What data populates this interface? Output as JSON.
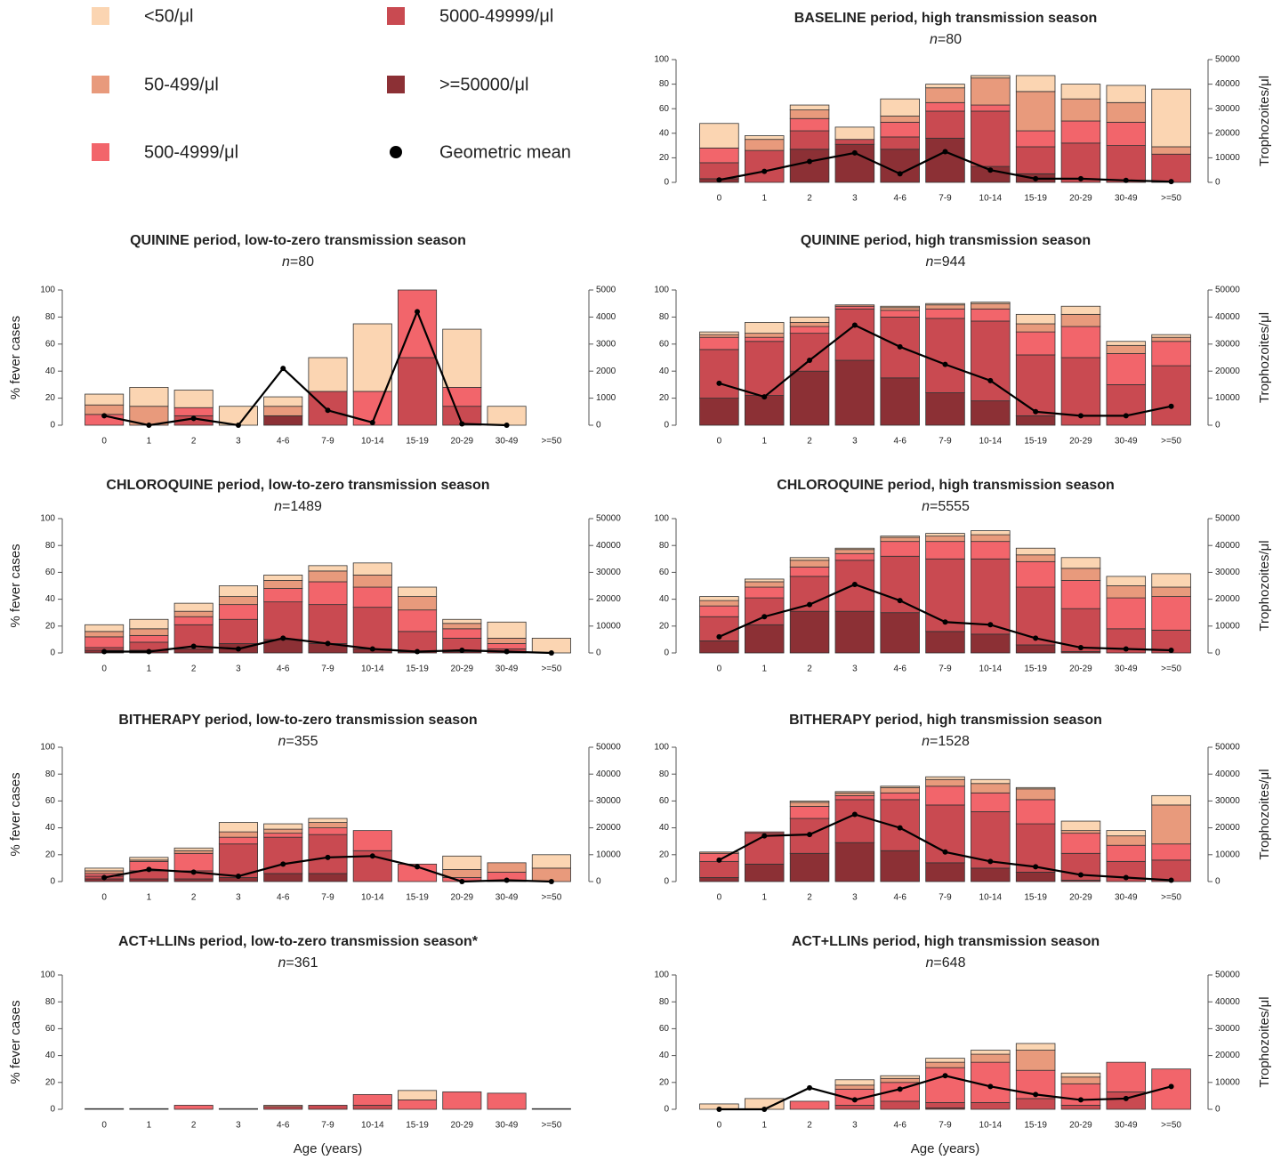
{
  "legend": {
    "items": [
      {
        "name": "<50/μl",
        "color": "#fbd5b2"
      },
      {
        "name": "50-499/μl",
        "color": "#e89a7c"
      },
      {
        "name": "500-4999/μl",
        "color": "#f2656b"
      },
      {
        "name": "5000-49999/μl",
        "color": "#c94a51"
      },
      {
        "name": ">=50000/μl",
        "color": "#8c3035"
      },
      {
        "name": "Geometric mean",
        "color": "#000000"
      }
    ]
  },
  "chart_data": [
    {
      "type": "bar",
      "title": "BASELINE period, high transmission season",
      "subtitle": "n=80",
      "categories": [
        "0",
        "1",
        "2",
        "3",
        "4-6",
        "7-9",
        "10-14",
        "15-19",
        "20-29",
        "30-49",
        ">=50"
      ],
      "series": [
        {
          "values": [
            20,
            3,
            4,
            10,
            14,
            3,
            2,
            13,
            12,
            14,
            47
          ]
        },
        {
          "values": [
            0,
            9,
            7,
            0,
            5,
            12,
            22,
            32,
            18,
            16,
            6
          ]
        },
        {
          "values": [
            12,
            0,
            10,
            0,
            12,
            7,
            5,
            13,
            18,
            19,
            0
          ]
        },
        {
          "values": [
            13,
            26,
            15,
            4,
            10,
            22,
            45,
            22,
            32,
            30,
            23
          ]
        },
        {
          "values": [
            3,
            0,
            27,
            31,
            27,
            36,
            13,
            7,
            0,
            0,
            0
          ]
        }
      ],
      "mean": {
        "axis": "y2",
        "values": [
          1000,
          4500,
          8500,
          12000,
          3500,
          12500,
          5000,
          1500,
          1500,
          800,
          300
        ]
      },
      "ylim": [
        0,
        100
      ],
      "yticks": [
        0,
        20,
        40,
        60,
        80,
        100
      ],
      "y2lim": [
        0,
        50000
      ],
      "y2ticks": [
        0,
        10000,
        20000,
        30000,
        40000,
        50000
      ],
      "y2label": "Trophozoites/μl"
    },
    {
      "type": "bar",
      "title": "QUININE period, low-to-zero transmission season",
      "subtitle": "n=80",
      "categories": [
        "0",
        "1",
        "2",
        "3",
        "4-6",
        "7-9",
        "10-14",
        "15-19",
        "20-29",
        "30-49",
        ">=50"
      ],
      "series": [
        {
          "values": [
            8,
            14,
            13,
            14,
            7,
            25,
            50,
            0,
            43,
            14,
            0
          ]
        },
        {
          "values": [
            7,
            14,
            0,
            0,
            7,
            0,
            0,
            0,
            0,
            0,
            0
          ]
        },
        {
          "values": [
            8,
            0,
            6,
            0,
            0,
            0,
            25,
            50,
            14,
            0,
            0
          ]
        },
        {
          "values": [
            0,
            0,
            7,
            0,
            0,
            25,
            0,
            50,
            14,
            0,
            0
          ]
        },
        {
          "values": [
            0,
            0,
            0,
            0,
            7,
            0,
            0,
            0,
            0,
            0,
            0
          ]
        }
      ],
      "mean": {
        "axis": "y2",
        "values": [
          350,
          0,
          250,
          0,
          2100,
          550,
          100,
          4200,
          50,
          0,
          null
        ]
      },
      "ylim": [
        0,
        100
      ],
      "yticks": [
        0,
        20,
        40,
        60,
        80,
        100
      ],
      "y2lim": [
        0,
        5000
      ],
      "y2ticks": [
        0,
        1000,
        2000,
        3000,
        4000,
        5000
      ],
      "ylabel": "% fever cases"
    },
    {
      "type": "bar",
      "title": "QUININE period, high transmission season",
      "subtitle": "n=944",
      "categories": [
        "0",
        "1",
        "2",
        "3",
        "4-6",
        "7-9",
        "10-14",
        "15-19",
        "20-29",
        "30-49",
        ">=50"
      ],
      "series": [
        {
          "values": [
            2,
            8,
            4,
            0,
            1,
            1,
            1,
            7,
            6,
            3,
            2
          ]
        },
        {
          "values": [
            2,
            3,
            3,
            1,
            2,
            3,
            4,
            6,
            9,
            6,
            3
          ]
        },
        {
          "values": [
            9,
            3,
            5,
            2,
            5,
            7,
            9,
            17,
            23,
            23,
            18
          ]
        },
        {
          "values": [
            36,
            40,
            28,
            38,
            45,
            55,
            59,
            45,
            50,
            30,
            44
          ]
        },
        {
          "values": [
            20,
            22,
            40,
            48,
            35,
            24,
            18,
            7,
            0,
            0,
            0
          ]
        }
      ],
      "mean": {
        "axis": "y2",
        "values": [
          15500,
          10500,
          24000,
          37000,
          29000,
          22500,
          16500,
          5000,
          3500,
          3500,
          7000
        ]
      },
      "ylim": [
        0,
        100
      ],
      "yticks": [
        0,
        20,
        40,
        60,
        80,
        100
      ],
      "y2lim": [
        0,
        50000
      ],
      "y2ticks": [
        0,
        10000,
        20000,
        30000,
        40000,
        50000
      ],
      "y2label": "Trophozoites/μl"
    },
    {
      "type": "bar",
      "title": "CHLOROQUINE period, low-to-zero transmission season",
      "subtitle": "n=1489",
      "categories": [
        "0",
        "1",
        "2",
        "3",
        "4-6",
        "7-9",
        "10-14",
        "15-19",
        "20-29",
        "30-49",
        ">=50"
      ],
      "series": [
        {
          "values": [
            5,
            7,
            6,
            8,
            4,
            4,
            9,
            7,
            3,
            12,
            11
          ]
        },
        {
          "values": [
            4,
            5,
            4,
            6,
            6,
            8,
            9,
            10,
            4,
            4,
            0
          ]
        },
        {
          "values": [
            8,
            5,
            6,
            11,
            10,
            17,
            15,
            16,
            7,
            4,
            0
          ]
        },
        {
          "values": [
            2,
            6,
            18,
            18,
            28,
            29,
            31,
            15,
            10,
            3,
            0
          ]
        },
        {
          "values": [
            2,
            2,
            3,
            7,
            10,
            7,
            3,
            1,
            1,
            0,
            0
          ]
        }
      ],
      "mean": {
        "axis": "y2",
        "values": [
          500,
          500,
          2500,
          1500,
          5500,
          3500,
          1500,
          500,
          1000,
          500,
          0
        ]
      },
      "ylim": [
        0,
        100
      ],
      "yticks": [
        0,
        20,
        40,
        60,
        80,
        100
      ],
      "y2lim": [
        0,
        50000
      ],
      "y2ticks": [
        0,
        10000,
        20000,
        30000,
        40000,
        50000
      ],
      "ylabel": "% fever cases"
    },
    {
      "type": "bar",
      "title": "CHLOROQUINE period, high transmission season",
      "subtitle": "n=5555",
      "categories": [
        "0",
        "1",
        "2",
        "3",
        "4-6",
        "7-9",
        "10-14",
        "15-19",
        "20-29",
        "30-49",
        ">=50"
      ],
      "series": [
        {
          "values": [
            3,
            2,
            2,
            1,
            1,
            2,
            3,
            5,
            8,
            7,
            10
          ]
        },
        {
          "values": [
            4,
            4,
            5,
            3,
            3,
            4,
            5,
            5,
            9,
            9,
            7
          ]
        },
        {
          "values": [
            8,
            8,
            7,
            5,
            11,
            13,
            13,
            19,
            21,
            23,
            25
          ]
        },
        {
          "values": [
            18,
            20,
            26,
            38,
            42,
            54,
            56,
            43,
            32,
            18,
            17
          ]
        },
        {
          "values": [
            9,
            21,
            31,
            31,
            30,
            16,
            14,
            6,
            1,
            0,
            0
          ]
        }
      ],
      "mean": {
        "axis": "y2",
        "values": [
          6000,
          13500,
          18000,
          25500,
          19500,
          11500,
          10500,
          5500,
          2000,
          1500,
          1000
        ]
      },
      "ylim": [
        0,
        100
      ],
      "yticks": [
        0,
        20,
        40,
        60,
        80,
        100
      ],
      "y2lim": [
        0,
        50000
      ],
      "y2ticks": [
        0,
        10000,
        20000,
        30000,
        40000,
        50000
      ],
      "y2label": "Trophozoites/μl"
    },
    {
      "type": "bar",
      "title": "BITHERAPY period, low-to-zero transmission season",
      "subtitle": "n=355",
      "categories": [
        "0",
        "1",
        "2",
        "3",
        "4-6",
        "7-9",
        "10-14",
        "15-19",
        "20-29",
        "30-49",
        ">=50"
      ],
      "series": [
        {
          "values": [
            2,
            2,
            2,
            7,
            4,
            3,
            0,
            0,
            10,
            0,
            10
          ]
        },
        {
          "values": [
            2,
            1,
            2,
            4,
            3,
            4,
            0,
            0,
            6,
            7,
            10
          ]
        },
        {
          "values": [
            2,
            7,
            13,
            5,
            3,
            5,
            15,
            13,
            3,
            7,
            0
          ]
        },
        {
          "values": [
            2,
            6,
            6,
            25,
            27,
            29,
            23,
            0,
            0,
            0,
            0
          ]
        },
        {
          "values": [
            2,
            2,
            2,
            3,
            6,
            6,
            0,
            0,
            0,
            0,
            0
          ]
        }
      ],
      "mean": {
        "axis": "y2",
        "values": [
          1500,
          4500,
          3500,
          2000,
          6500,
          9000,
          9500,
          5500,
          0,
          500,
          0
        ]
      },
      "ylim": [
        0,
        100
      ],
      "yticks": [
        0,
        20,
        40,
        60,
        80,
        100
      ],
      "y2lim": [
        0,
        50000
      ],
      "y2ticks": [
        0,
        10000,
        20000,
        30000,
        40000,
        50000
      ],
      "ylabel": "% fever cases"
    },
    {
      "type": "bar",
      "title": "BITHERAPY period, high transmission season",
      "subtitle": "n=1528",
      "categories": [
        "0",
        "1",
        "2",
        "3",
        "4-6",
        "7-9",
        "10-14",
        "15-19",
        "20-29",
        "30-49",
        ">=50"
      ],
      "series": [
        {
          "values": [
            0,
            0,
            1,
            1,
            1,
            2,
            3,
            1,
            7,
            4,
            7
          ]
        },
        {
          "values": [
            1,
            0,
            3,
            2,
            4,
            5,
            7,
            8,
            2,
            7,
            29
          ]
        },
        {
          "values": [
            6,
            1,
            9,
            3,
            5,
            14,
            14,
            18,
            15,
            12,
            12
          ]
        },
        {
          "values": [
            12,
            23,
            26,
            32,
            38,
            43,
            42,
            36,
            20,
            15,
            16
          ]
        },
        {
          "values": [
            3,
            13,
            21,
            29,
            23,
            14,
            10,
            7,
            1,
            0,
            0
          ]
        }
      ],
      "mean": {
        "axis": "y2",
        "values": [
          8000,
          17000,
          17500,
          25000,
          20000,
          11000,
          7500,
          5500,
          2500,
          1500,
          500
        ]
      },
      "ylim": [
        0,
        100
      ],
      "yticks": [
        0,
        20,
        40,
        60,
        80,
        100
      ],
      "y2lim": [
        0,
        50000
      ],
      "y2ticks": [
        0,
        10000,
        20000,
        30000,
        40000,
        50000
      ],
      "y2label": "Trophozoites/μl"
    },
    {
      "type": "bar",
      "title": "ACT+LLINs period, low-to-zero transmission season*",
      "subtitle": "n=361",
      "categories": [
        "0",
        "1",
        "2",
        "3",
        "4-6",
        "7-9",
        "10-14",
        "15-19",
        "20-29",
        "30-49",
        ">=50"
      ],
      "series": [
        {
          "values": [
            0,
            0,
            0,
            0,
            0,
            0,
            0,
            7,
            0,
            0,
            0
          ]
        },
        {
          "values": [
            0,
            0,
            0,
            0,
            1,
            0,
            0,
            0,
            0,
            0,
            0
          ]
        },
        {
          "values": [
            0.5,
            0.5,
            3,
            0.5,
            0,
            0,
            8,
            7,
            13,
            12,
            0.5
          ]
        },
        {
          "values": [
            0,
            0,
            0,
            0,
            2,
            3,
            3,
            0,
            0,
            0,
            0
          ]
        },
        {
          "values": [
            0,
            0,
            0,
            0,
            0,
            0,
            0,
            0,
            0,
            0,
            0
          ]
        }
      ],
      "ylim": [
        0,
        100
      ],
      "yticks": [
        0,
        20,
        40,
        60,
        80,
        100
      ],
      "ylabel": "% fever cases",
      "xlabel": "Age (years)"
    },
    {
      "type": "bar",
      "title": "ACT+LLINs period, high transmission season",
      "subtitle": "n=648",
      "categories": [
        "0",
        "1",
        "2",
        "3",
        "4-6",
        "7-9",
        "10-14",
        "15-19",
        "20-29",
        "30-49",
        ">=50"
      ],
      "series": [
        {
          "values": [
            4,
            8,
            0,
            4,
            2,
            3,
            3,
            5,
            3,
            0,
            0
          ]
        },
        {
          "values": [
            0,
            0,
            0,
            3,
            3,
            4,
            6,
            15,
            5,
            0,
            0
          ]
        },
        {
          "values": [
            0,
            0,
            6,
            12,
            14,
            26,
            30,
            21,
            16,
            22,
            30
          ]
        },
        {
          "values": [
            0,
            0,
            0,
            3,
            6,
            4,
            5,
            8,
            3,
            13,
            0
          ]
        },
        {
          "values": [
            0,
            0,
            0,
            0,
            0,
            1,
            0,
            0,
            0,
            0,
            0
          ]
        }
      ],
      "mean": {
        "axis": "y2",
        "values": [
          0,
          0,
          8000,
          3500,
          7500,
          12500,
          8500,
          5500,
          3500,
          4000,
          8500
        ]
      },
      "ylim": [
        0,
        100
      ],
      "yticks": [
        0,
        20,
        40,
        60,
        80,
        100
      ],
      "y2lim": [
        0,
        50000
      ],
      "y2ticks": [
        0,
        10000,
        20000,
        30000,
        40000,
        50000
      ],
      "y2label": "Trophozoites/μl",
      "xlabel": "Age (years)"
    }
  ]
}
